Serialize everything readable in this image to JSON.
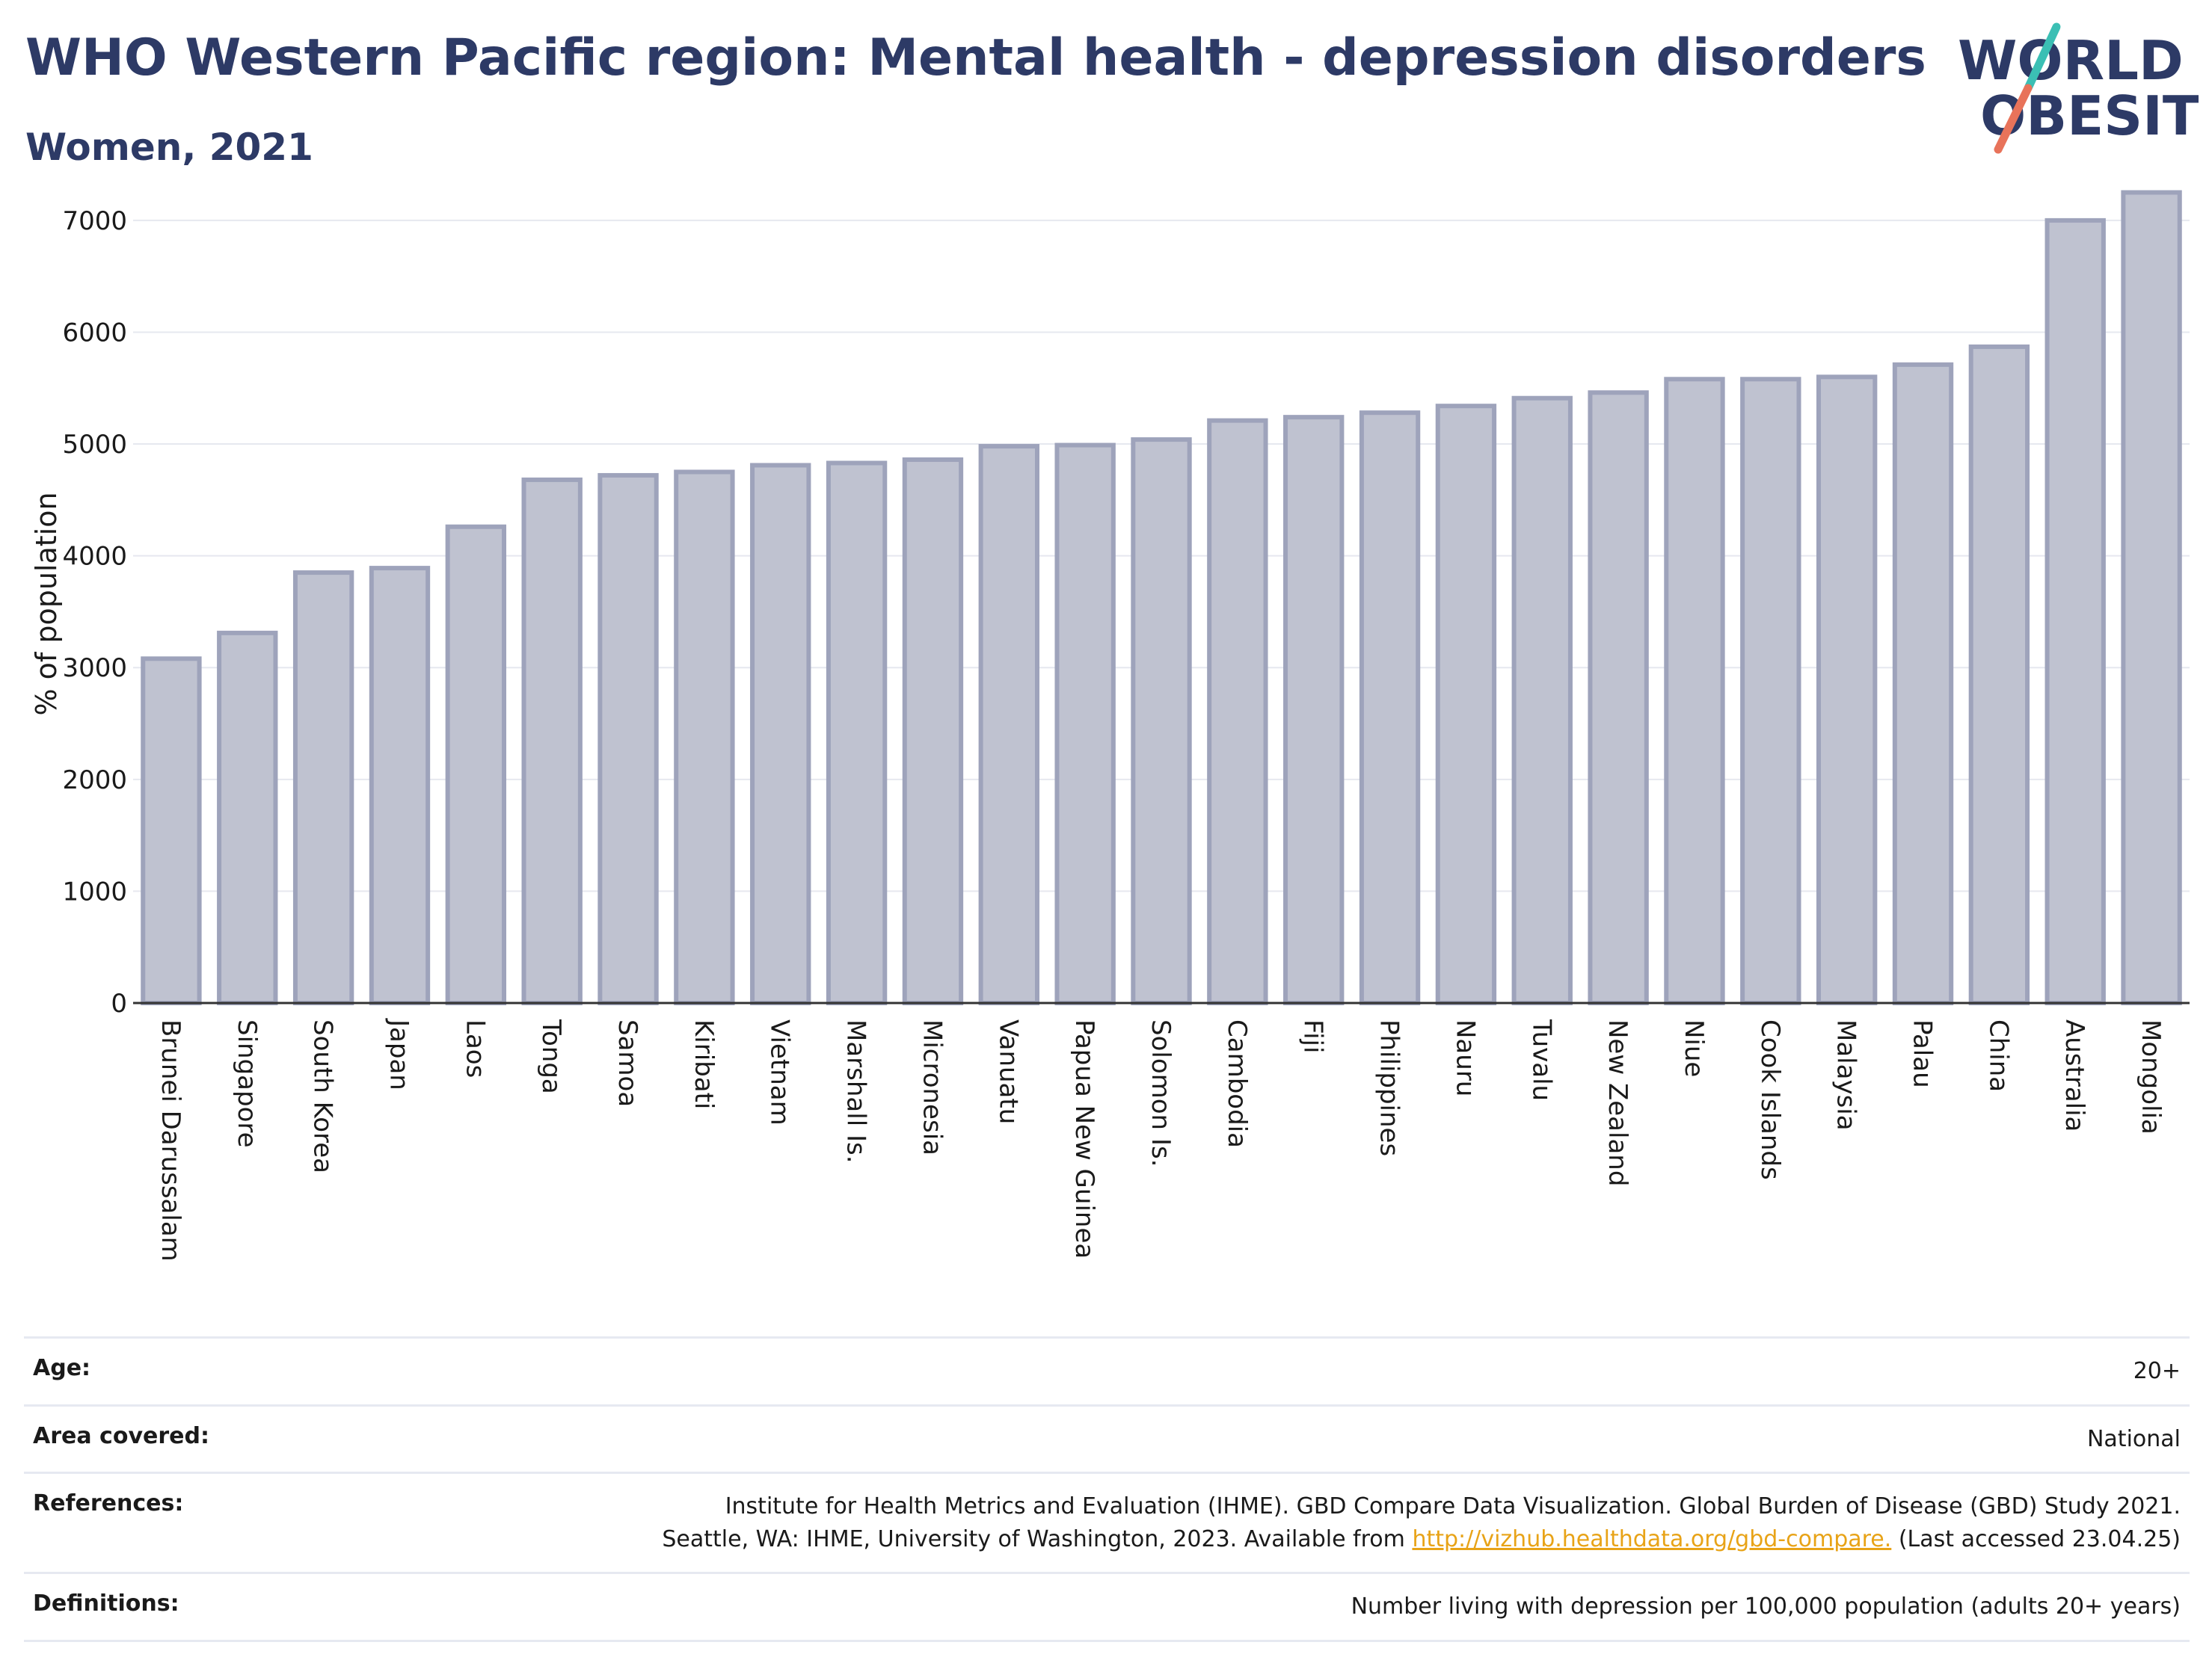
{
  "header": {
    "title": "WHO Western Pacific region: Mental health - depression disorders",
    "subtitle": "Women, 2021"
  },
  "logo": {
    "line1": "WORLD",
    "line2": "OBESITY",
    "slash_colors": [
      "#3bbfb4",
      "#e8735a"
    ],
    "text_color": "#2d3a66"
  },
  "chart_data": {
    "type": "bar",
    "title": "WHO Western Pacific region: Mental health - depression disorders",
    "subtitle": "Women, 2021",
    "xlabel": "",
    "ylabel": "% of population",
    "ylim": [
      0,
      7300
    ],
    "yticks": [
      0,
      1000,
      2000,
      3000,
      4000,
      5000,
      6000,
      7000
    ],
    "grid": true,
    "bar_color": "#bfc2d0",
    "bar_edge_color": "#9ea3bb",
    "categories": [
      "Brunei Darussalam",
      "Singapore",
      "South Korea",
      "Japan",
      "Laos",
      "Tonga",
      "Samoa",
      "Kiribati",
      "Vietnam",
      "Marshall Is.",
      "Micronesia",
      "Vanuatu",
      "Papua New Guinea",
      "Solomon Is.",
      "Cambodia",
      "Fiji",
      "Philippines",
      "Nauru",
      "Tuvalu",
      "New Zealand",
      "Niue",
      "Cook Islands",
      "Malaysia",
      "Palau",
      "China",
      "Australia",
      "Mongolia"
    ],
    "values": [
      3080,
      3310,
      3850,
      3890,
      4260,
      4680,
      4720,
      4750,
      4810,
      4830,
      4860,
      4980,
      4990,
      5040,
      5210,
      5240,
      5280,
      5340,
      5410,
      5460,
      5580,
      5580,
      5600,
      5710,
      5870,
      7000,
      7250
    ]
  },
  "meta": {
    "age_label": "Age:",
    "age_value": "20+",
    "area_label": "Area covered:",
    "area_value": "National",
    "references_label": "References:",
    "references_line1": "Institute for Health Metrics and Evaluation (IHME). GBD Compare Data Visualization. Global Burden of Disease (GBD) Study 2021.",
    "references_line2_pre": "Seattle, WA: IHME, University of Washington, 2023. Available from",
    "references_link": "http://vizhub.healthdata.org/gbd-compare.",
    "references_line2_post": "(Last accessed 23.04.25)",
    "definitions_label": "Definitions:",
    "definitions_value": "Number living with depression per 100,000 population (adults 20+ years)"
  }
}
